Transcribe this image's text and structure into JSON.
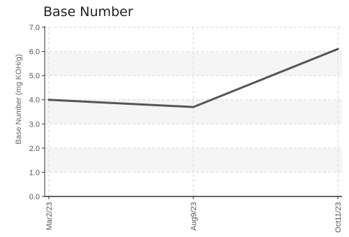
{
  "chart_data": {
    "type": "line",
    "title": "Base Number",
    "xlabel": "",
    "ylabel": "Base Number (mg KOH/g)",
    "categories": [
      "Mar2/23",
      "Aug9/23",
      "Oct11/23"
    ],
    "series": [
      {
        "values": [
          4.0,
          3.7,
          6.1
        ]
      }
    ],
    "ylim": [
      0,
      7
    ],
    "yticks": [
      "0.0",
      "1.0",
      "2.0",
      "3.0",
      "4.0",
      "5.0",
      "6.0",
      "7.0"
    ],
    "grid": true,
    "colors": {
      "line": "#555555",
      "band": "#f5f5f5",
      "grid": "#d9d9d9",
      "axis": "#333333"
    }
  }
}
